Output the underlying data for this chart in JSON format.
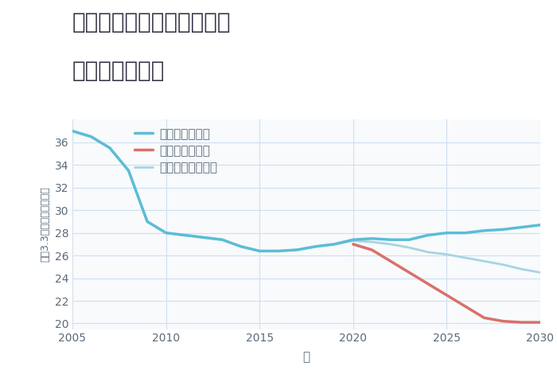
{
  "title_line1": "奈良県奈良市北之庄西町の",
  "title_line2": "土地の価格推移",
  "xlabel": "年",
  "ylabel": "坪（3.3㎡）単価（万円）",
  "background_color": "#ffffff",
  "plot_background": "#f8fafc",
  "good_scenario": {
    "label": "グッドシナリオ",
    "color": "#5bbdd6",
    "linewidth": 2.5,
    "x": [
      2005,
      2006,
      2007,
      2008,
      2009,
      2010,
      2011,
      2012,
      2013,
      2014,
      2015,
      2016,
      2017,
      2018,
      2019,
      2020,
      2021,
      2022,
      2023,
      2024,
      2025,
      2026,
      2027,
      2028,
      2029,
      2030
    ],
    "y": [
      37.0,
      36.5,
      35.5,
      33.5,
      29.0,
      28.0,
      27.8,
      27.6,
      27.4,
      26.8,
      26.4,
      26.4,
      26.5,
      26.8,
      27.0,
      27.4,
      27.5,
      27.4,
      27.4,
      27.8,
      28.0,
      28.0,
      28.2,
      28.3,
      28.5,
      28.7
    ]
  },
  "bad_scenario": {
    "label": "バッドシナリオ",
    "color": "#d9706a",
    "linewidth": 2.5,
    "x": [
      2020,
      2021,
      2022,
      2023,
      2024,
      2025,
      2026,
      2027,
      2028,
      2029,
      2030
    ],
    "y": [
      27.0,
      26.5,
      25.5,
      24.5,
      23.5,
      22.5,
      21.5,
      20.5,
      20.2,
      20.1,
      20.1
    ]
  },
  "normal_scenario": {
    "label": "ノーマルシナリオ",
    "color": "#a8d4e0",
    "linewidth": 2.0,
    "x": [
      2005,
      2006,
      2007,
      2008,
      2009,
      2010,
      2011,
      2012,
      2013,
      2014,
      2015,
      2016,
      2017,
      2018,
      2019,
      2020,
      2021,
      2022,
      2023,
      2024,
      2025,
      2026,
      2027,
      2028,
      2029,
      2030
    ],
    "y": [
      37.0,
      36.5,
      35.5,
      33.5,
      29.0,
      28.0,
      27.8,
      27.6,
      27.4,
      26.8,
      26.4,
      26.4,
      26.5,
      26.8,
      27.0,
      27.3,
      27.2,
      27.0,
      26.7,
      26.3,
      26.1,
      25.8,
      25.5,
      25.2,
      24.8,
      24.5
    ]
  },
  "xlim": [
    2005,
    2030
  ],
  "ylim": [
    19.5,
    38
  ],
  "yticks": [
    20,
    22,
    24,
    26,
    28,
    30,
    32,
    34,
    36
  ],
  "xticks": [
    2005,
    2010,
    2015,
    2020,
    2025,
    2030
  ],
  "grid_color": "#d0dff0",
  "title_fontsize": 20,
  "axis_fontsize": 11,
  "legend_fontsize": 11,
  "tick_fontsize": 10,
  "tick_color": "#5a6a7a",
  "text_color": "#333344"
}
